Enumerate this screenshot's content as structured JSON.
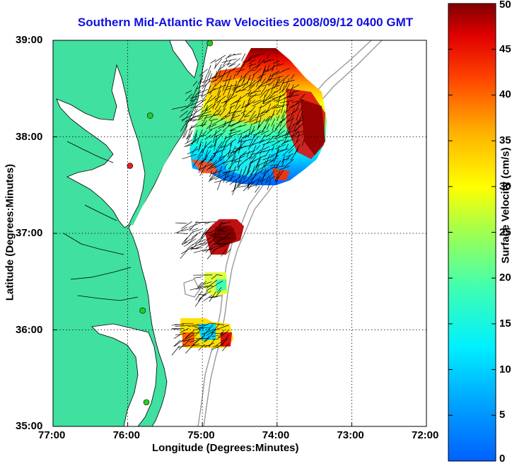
{
  "title": "Southern Mid-Atlantic Raw Velocities 2008/09/12 0400 GMT",
  "axes": {
    "xlabel": "Longitude (Degrees:Minutes)",
    "ylabel": "Latitude (Degrees:Minutes)",
    "x_ticks": [
      "77:00",
      "76:00",
      "75:00",
      "74:00",
      "73:00",
      "72:00"
    ],
    "y_ticks": [
      "39:00",
      "38:00",
      "37:00",
      "36:00",
      "35:00"
    ],
    "x_range": [
      -77,
      -72
    ],
    "y_range": [
      35,
      39
    ],
    "grid": "dotted"
  },
  "colorbar": {
    "label": "Surface Velocity (cm/s)",
    "ticks": [
      "0",
      "5",
      "10",
      "15",
      "20",
      "25",
      "30",
      "35",
      "40",
      "45",
      "50"
    ],
    "range": [
      0,
      50
    ],
    "colormap": "jet"
  },
  "colors": {
    "land": "#40e0a0",
    "ocean": "#ffffff",
    "title": "#1010e0",
    "bathymetry": "#999999",
    "station_green": "#20d020",
    "station_red": "#e02020"
  },
  "chart_data": {
    "type": "heatmap",
    "title": "Southern Mid-Atlantic Raw Velocities 2008/09/12 0400 GMT",
    "xlabel": "Longitude (Degrees:Minutes)",
    "ylabel": "Latitude (Degrees:Minutes)",
    "colorbar_label": "Surface Velocity (cm/s)",
    "regions": [
      {
        "name": "",
        "lon_range": [
          -75.2,
          -73.6
        ],
        "lat_range": [
          37.5,
          38.9
        ],
        "speed_range_cms": [
          5,
          50
        ],
        "max_speed_area": "east (~-73.6, 38.1)",
        "min_speed_area": "center (~-74.2, 37.8)"
      },
      {
        "name": "",
        "lon_range": [
          -75.2,
          -74.6
        ],
        "lat_range": [
          36.85,
          37.15
        ],
        "speed_range_cms": [
          35,
          50
        ]
      },
      {
        "name": "",
        "lon_range": [
          -75.0,
          -74.7
        ],
        "lat_range": [
          36.35,
          36.6
        ],
        "speed_range_cms": [
          20,
          30
        ]
      },
      {
        "name": "",
        "lon_range": [
          -75.3,
          -74.6
        ],
        "lat_range": [
          35.85,
          36.1
        ],
        "speed_range_cms": [
          10,
          40
        ]
      }
    ],
    "stations": [
      {
        "lon": -74.9,
        "lat": 38.97,
        "status": "active"
      },
      {
        "lon": -75.7,
        "lat": 38.22,
        "status": "active"
      },
      {
        "lon": -75.97,
        "lat": 37.7,
        "status": "inactive"
      },
      {
        "lon": -75.8,
        "lat": 36.2,
        "status": "active"
      },
      {
        "lon": -75.75,
        "lat": 35.25,
        "status": "active"
      }
    ]
  }
}
